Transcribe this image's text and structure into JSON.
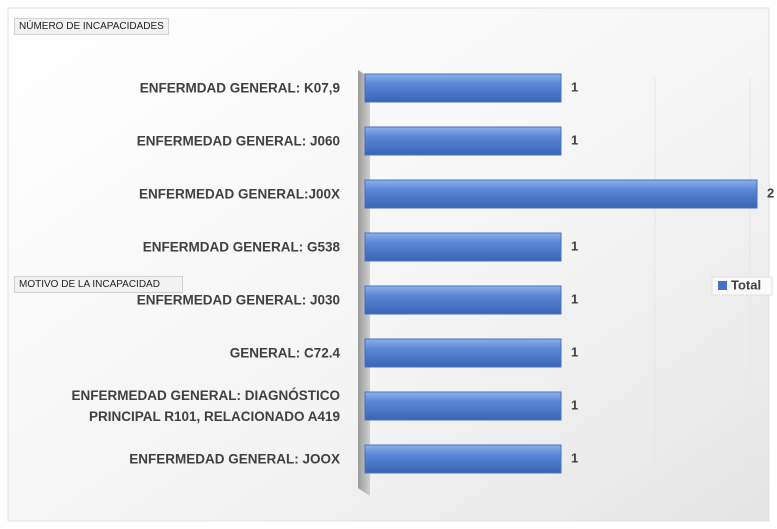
{
  "chart_data": {
    "type": "bar",
    "orientation": "horizontal",
    "title": "NÚMERO DE INCAPACIDADES",
    "axis_field": "MOTIVO DE LA INCAPACIDAD",
    "categories": [
      "ENFERMDAD GENERAL: K07,9",
      "ENFERMEDAD GENERAL: J060",
      "ENFERMEDAD GENERAL:J00X",
      "ENFERMDAD GENERAL: G538",
      "ENFERMEDAD GENERAL: J030",
      "GENERAL: C72.4",
      "ENFERMEDAD GENERAL: DIAGNÓSTICO\nPRINCIPAL R101, RELACIONADO A419",
      "ENFERMEDAD GENERAL: JOOX"
    ],
    "series": [
      {
        "name": "Total",
        "color": "#4472c4",
        "values": [
          1,
          1,
          2,
          1,
          1,
          1,
          1,
          1
        ]
      }
    ],
    "xlim": [
      0,
      2
    ],
    "legend": "right"
  }
}
